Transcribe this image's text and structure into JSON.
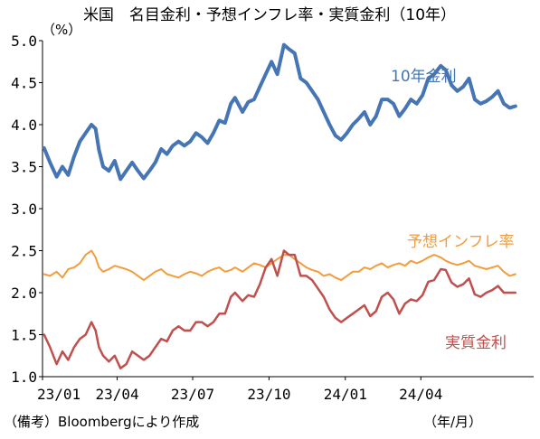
{
  "chart_data": {
    "type": "line",
    "title": "米国　名目金利・予想インフレ率・実質金利（10年）",
    "yunit": "（%）",
    "xunit": "（年/月）",
    "note": "（備考）Bloombergにより作成",
    "ylim": [
      1.0,
      5.0
    ],
    "yticks": [
      "5.0",
      "4.5",
      "4.0",
      "3.5",
      "3.0",
      "2.5",
      "2.0",
      "1.5",
      "1.0"
    ],
    "xticks": [
      "23/01",
      "23/04",
      "23/07",
      "23/10",
      "24/01",
      "24/04"
    ],
    "x_start": "2023-01",
    "x_end": "2024-07",
    "grid": false,
    "colors": {
      "nominal": "#4575b4",
      "inflation": "#f39c3c",
      "real": "#c0504d"
    },
    "series": [
      {
        "name": "10年金利",
        "key": "nominal",
        "x": [
          "2023-01-03",
          "2023-01-10",
          "2023-01-18",
          "2023-01-25",
          "2023-02-01",
          "2023-02-08",
          "2023-02-15",
          "2023-02-22",
          "2023-03-01",
          "2023-03-06",
          "2023-03-10",
          "2023-03-15",
          "2023-03-22",
          "2023-03-29",
          "2023-04-05",
          "2023-04-12",
          "2023-04-19",
          "2023-04-26",
          "2023-05-03",
          "2023-05-10",
          "2023-05-17",
          "2023-05-24",
          "2023-05-31",
          "2023-06-07",
          "2023-06-14",
          "2023-06-21",
          "2023-06-28",
          "2023-07-05",
          "2023-07-12",
          "2023-07-19",
          "2023-07-26",
          "2023-08-02",
          "2023-08-09",
          "2023-08-16",
          "2023-08-21",
          "2023-08-30",
          "2023-09-06",
          "2023-09-13",
          "2023-09-20",
          "2023-09-27",
          "2023-10-04",
          "2023-10-11",
          "2023-10-19",
          "2023-10-25",
          "2023-11-01",
          "2023-11-08",
          "2023-11-15",
          "2023-11-22",
          "2023-11-29",
          "2023-12-06",
          "2023-12-13",
          "2023-12-20",
          "2023-12-27",
          "2024-01-03",
          "2024-01-10",
          "2024-01-17",
          "2024-01-24",
          "2024-01-31",
          "2024-02-07",
          "2024-02-14",
          "2024-02-21",
          "2024-02-28",
          "2024-03-06",
          "2024-03-13",
          "2024-03-20",
          "2024-03-27",
          "2024-04-03",
          "2024-04-10",
          "2024-04-17",
          "2024-04-25",
          "2024-05-01",
          "2024-05-08",
          "2024-05-15",
          "2024-05-22",
          "2024-05-29",
          "2024-06-05",
          "2024-06-12",
          "2024-06-19",
          "2024-06-26",
          "2024-07-03",
          "2024-07-10",
          "2024-07-17",
          "2024-07-24"
        ],
        "values": [
          3.72,
          3.55,
          3.38,
          3.5,
          3.4,
          3.62,
          3.8,
          3.9,
          4.0,
          3.95,
          3.7,
          3.5,
          3.45,
          3.57,
          3.35,
          3.45,
          3.55,
          3.45,
          3.36,
          3.45,
          3.55,
          3.71,
          3.65,
          3.75,
          3.8,
          3.75,
          3.8,
          3.9,
          3.85,
          3.78,
          3.9,
          4.05,
          4.02,
          4.25,
          4.32,
          4.15,
          4.27,
          4.3,
          4.45,
          4.6,
          4.75,
          4.6,
          4.95,
          4.9,
          4.85,
          4.55,
          4.5,
          4.4,
          4.3,
          4.15,
          4.0,
          3.87,
          3.82,
          3.9,
          4.0,
          4.07,
          4.15,
          4.0,
          4.1,
          4.3,
          4.3,
          4.25,
          4.1,
          4.19,
          4.3,
          4.25,
          4.35,
          4.55,
          4.6,
          4.7,
          4.65,
          4.47,
          4.4,
          4.45,
          4.55,
          4.3,
          4.25,
          4.28,
          4.33,
          4.4,
          4.25,
          4.2,
          4.22
        ]
      },
      {
        "name": "予想インフレ率",
        "key": "inflation",
        "x": [
          "2023-01-03",
          "2023-01-10",
          "2023-01-18",
          "2023-01-25",
          "2023-02-01",
          "2023-02-08",
          "2023-02-15",
          "2023-02-22",
          "2023-03-01",
          "2023-03-06",
          "2023-03-10",
          "2023-03-15",
          "2023-03-22",
          "2023-03-29",
          "2023-04-05",
          "2023-04-12",
          "2023-04-19",
          "2023-04-26",
          "2023-05-03",
          "2023-05-10",
          "2023-05-17",
          "2023-05-24",
          "2023-05-31",
          "2023-06-07",
          "2023-06-14",
          "2023-06-21",
          "2023-06-28",
          "2023-07-05",
          "2023-07-12",
          "2023-07-19",
          "2023-07-26",
          "2023-08-02",
          "2023-08-09",
          "2023-08-16",
          "2023-08-21",
          "2023-08-30",
          "2023-09-06",
          "2023-09-13",
          "2023-09-20",
          "2023-09-27",
          "2023-10-04",
          "2023-10-11",
          "2023-10-19",
          "2023-10-25",
          "2023-11-01",
          "2023-11-08",
          "2023-11-15",
          "2023-11-22",
          "2023-11-29",
          "2023-12-06",
          "2023-12-13",
          "2023-12-20",
          "2023-12-27",
          "2024-01-03",
          "2024-01-10",
          "2024-01-17",
          "2024-01-24",
          "2024-01-31",
          "2024-02-07",
          "2024-02-14",
          "2024-02-21",
          "2024-02-28",
          "2024-03-06",
          "2024-03-13",
          "2024-03-20",
          "2024-03-27",
          "2024-04-03",
          "2024-04-10",
          "2024-04-17",
          "2024-04-25",
          "2024-05-01",
          "2024-05-08",
          "2024-05-15",
          "2024-05-22",
          "2024-05-29",
          "2024-06-05",
          "2024-06-12",
          "2024-06-19",
          "2024-06-26",
          "2024-07-03",
          "2024-07-10",
          "2024-07-17",
          "2024-07-24"
        ],
        "values": [
          2.22,
          2.2,
          2.25,
          2.18,
          2.28,
          2.3,
          2.35,
          2.45,
          2.5,
          2.42,
          2.3,
          2.25,
          2.28,
          2.32,
          2.3,
          2.28,
          2.25,
          2.2,
          2.15,
          2.2,
          2.25,
          2.28,
          2.22,
          2.2,
          2.18,
          2.22,
          2.25,
          2.23,
          2.2,
          2.25,
          2.28,
          2.3,
          2.25,
          2.27,
          2.3,
          2.25,
          2.3,
          2.35,
          2.33,
          2.3,
          2.35,
          2.4,
          2.45,
          2.45,
          2.4,
          2.35,
          2.3,
          2.27,
          2.25,
          2.2,
          2.22,
          2.18,
          2.15,
          2.2,
          2.25,
          2.25,
          2.3,
          2.28,
          2.32,
          2.35,
          2.3,
          2.33,
          2.35,
          2.32,
          2.38,
          2.35,
          2.38,
          2.42,
          2.45,
          2.42,
          2.38,
          2.35,
          2.33,
          2.35,
          2.38,
          2.32,
          2.3,
          2.28,
          2.3,
          2.32,
          2.25,
          2.2,
          2.22
        ]
      },
      {
        "name": "実質金利",
        "key": "real",
        "x": [
          "2023-01-03",
          "2023-01-10",
          "2023-01-18",
          "2023-01-25",
          "2023-02-01",
          "2023-02-08",
          "2023-02-15",
          "2023-02-22",
          "2023-03-01",
          "2023-03-06",
          "2023-03-10",
          "2023-03-15",
          "2023-03-22",
          "2023-03-29",
          "2023-04-05",
          "2023-04-12",
          "2023-04-19",
          "2023-04-26",
          "2023-05-03",
          "2023-05-10",
          "2023-05-17",
          "2023-05-24",
          "2023-05-31",
          "2023-06-07",
          "2023-06-14",
          "2023-06-21",
          "2023-06-28",
          "2023-07-05",
          "2023-07-12",
          "2023-07-19",
          "2023-07-26",
          "2023-08-02",
          "2023-08-09",
          "2023-08-16",
          "2023-08-21",
          "2023-08-30",
          "2023-09-06",
          "2023-09-13",
          "2023-09-20",
          "2023-09-27",
          "2023-10-04",
          "2023-10-11",
          "2023-10-19",
          "2023-10-25",
          "2023-11-01",
          "2023-11-08",
          "2023-11-15",
          "2023-11-22",
          "2023-11-29",
          "2023-12-06",
          "2023-12-13",
          "2023-12-20",
          "2023-12-27",
          "2024-01-03",
          "2024-01-10",
          "2024-01-17",
          "2024-01-24",
          "2024-01-31",
          "2024-02-07",
          "2024-02-14",
          "2024-02-21",
          "2024-02-28",
          "2024-03-06",
          "2024-03-13",
          "2024-03-20",
          "2024-03-27",
          "2024-04-03",
          "2024-04-10",
          "2024-04-17",
          "2024-04-25",
          "2024-05-01",
          "2024-05-08",
          "2024-05-15",
          "2024-05-22",
          "2024-05-29",
          "2024-06-05",
          "2024-06-12",
          "2024-06-19",
          "2024-06-26",
          "2024-07-03",
          "2024-07-10",
          "2024-07-17",
          "2024-07-24"
        ],
        "values": [
          1.5,
          1.35,
          1.15,
          1.3,
          1.2,
          1.35,
          1.45,
          1.5,
          1.65,
          1.55,
          1.35,
          1.25,
          1.18,
          1.25,
          1.1,
          1.15,
          1.3,
          1.25,
          1.2,
          1.25,
          1.35,
          1.45,
          1.42,
          1.55,
          1.6,
          1.55,
          1.55,
          1.65,
          1.65,
          1.6,
          1.65,
          1.75,
          1.75,
          1.95,
          2.0,
          1.9,
          1.97,
          1.95,
          2.1,
          2.3,
          2.4,
          2.2,
          2.5,
          2.45,
          2.45,
          2.2,
          2.2,
          2.15,
          2.05,
          1.95,
          1.8,
          1.7,
          1.65,
          1.7,
          1.75,
          1.8,
          1.85,
          1.72,
          1.78,
          1.95,
          2.0,
          1.92,
          1.75,
          1.87,
          1.92,
          1.9,
          1.97,
          2.13,
          2.15,
          2.28,
          2.27,
          2.12,
          2.07,
          2.1,
          2.17,
          1.98,
          1.95,
          2.0,
          2.03,
          2.08,
          2.0,
          2.0,
          2.0
        ]
      }
    ]
  }
}
